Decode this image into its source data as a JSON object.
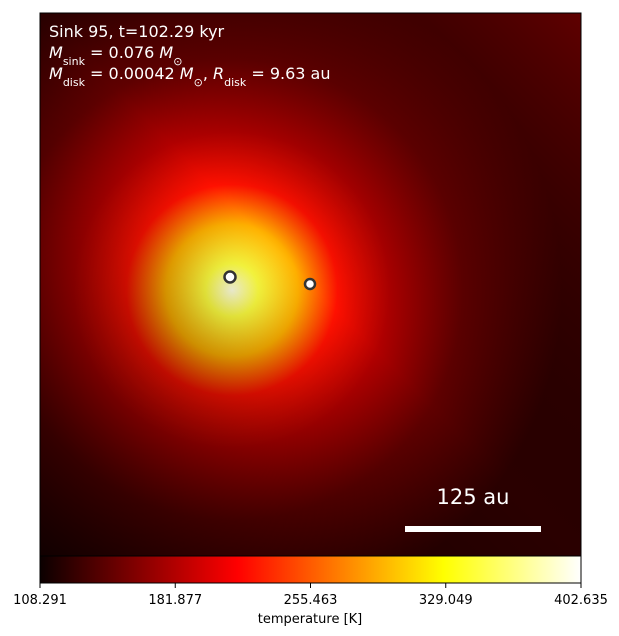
{
  "chart_data": {
    "type": "image",
    "annotations": [
      [
        {
          "t": "Sink 95, t=102.29 kyr"
        }
      ],
      [
        {
          "t": "M",
          "style": "italic"
        },
        {
          "t": "sink",
          "style": "sub"
        },
        {
          "t": " = 0.076 "
        },
        {
          "t": "M",
          "style": "italic"
        },
        {
          "t": "⊙",
          "style": "sub"
        }
      ],
      [
        {
          "t": "M",
          "style": "italic"
        },
        {
          "t": "disk",
          "style": "sub"
        },
        {
          "t": " = 0.00042 "
        },
        {
          "t": "M",
          "style": "italic"
        },
        {
          "t": "⊙",
          "style": "sub"
        },
        {
          "t": ", "
        },
        {
          "t": "R",
          "style": "italic"
        },
        {
          "t": "disk",
          "style": "sub"
        },
        {
          "t": " = 9.63 au"
        }
      ]
    ],
    "scale_bar_label": "125 au",
    "colorbar": {
      "label": "temperature [K]",
      "colormap": "hot",
      "lim": [
        108.291,
        402.635
      ],
      "ticks": [
        108.291,
        181.877,
        255.463,
        329.049,
        402.635
      ]
    }
  }
}
